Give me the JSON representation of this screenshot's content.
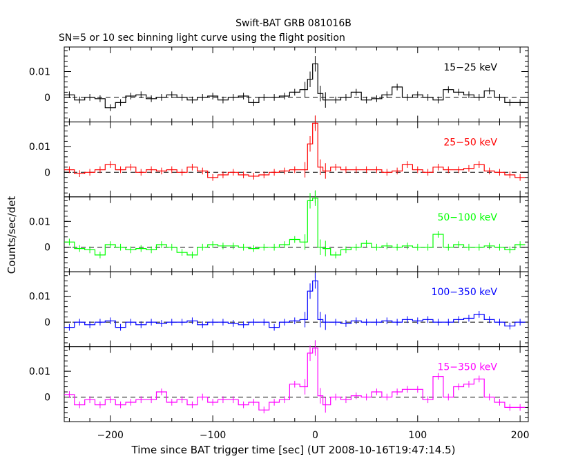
{
  "chart_data": {
    "type": "line",
    "title": "Swift-BAT GRB 081016B",
    "subtitle": "SN=5 or 10 sec binning light curve using the flight position",
    "xlabel": "Time since BAT trigger time [sec] (UT 2008-10-16T19:47:14.5)",
    "ylabel": "Counts/sec/det",
    "xlim": [
      -245,
      208
    ],
    "ylim": [
      -0.0095,
      0.0195
    ],
    "x_ticks": [
      -200,
      -100,
      0,
      100,
      200
    ],
    "x_tick_labels": [
      "−200",
      "−100",
      "0",
      "100",
      "200"
    ],
    "y_ticks": [
      0,
      0.01
    ],
    "y_tick_labels": [
      "0",
      "0.01"
    ],
    "zero_line": "dashed",
    "panels": [
      {
        "band": "15−25 keV",
        "color": "#000000",
        "x": [
          -240,
          -230,
          -220,
          -210,
          -200,
          -190,
          -180,
          -170,
          -160,
          -150,
          -140,
          -130,
          -120,
          -110,
          -100,
          -90,
          -80,
          -70,
          -60,
          -50,
          -40,
          -30,
          -20,
          -10,
          -5,
          0,
          5,
          10,
          20,
          30,
          40,
          50,
          60,
          70,
          80,
          90,
          100,
          110,
          120,
          130,
          140,
          150,
          160,
          170,
          180,
          190,
          200
        ],
        "y": [
          0.001,
          -0.001,
          0.0,
          -0.0005,
          -0.004,
          -0.002,
          0.0005,
          0.001,
          -0.0005,
          0.0,
          0.001,
          0.0,
          -0.001,
          0.0,
          0.0005,
          -0.001,
          0.0,
          0.0005,
          -0.002,
          0.0,
          0.0,
          0.0005,
          0.002,
          0.003,
          0.007,
          0.013,
          0.0015,
          -0.001,
          -0.001,
          0.0,
          0.002,
          -0.001,
          -0.0005,
          0.001,
          0.004,
          0.0,
          0.001,
          0.0,
          -0.001,
          0.003,
          0.002,
          0.001,
          0.0,
          0.0025,
          0.0,
          -0.002,
          -0.002
        ]
      },
      {
        "band": "25−50 keV",
        "color": "#ff0000",
        "x": [
          -240,
          -230,
          -220,
          -210,
          -200,
          -190,
          -180,
          -170,
          -160,
          -150,
          -140,
          -130,
          -120,
          -110,
          -100,
          -90,
          -80,
          -70,
          -60,
          -50,
          -40,
          -30,
          -20,
          -10,
          -5,
          0,
          5,
          10,
          20,
          30,
          40,
          50,
          60,
          70,
          80,
          90,
          100,
          110,
          120,
          130,
          140,
          150,
          160,
          170,
          180,
          190,
          200
        ],
        "y": [
          0.001,
          -0.0005,
          0.0,
          0.001,
          0.003,
          0.001,
          0.002,
          0.0,
          0.001,
          0.0005,
          0.001,
          0.0,
          0.002,
          0.0005,
          -0.002,
          -0.001,
          0.0,
          -0.001,
          -0.0015,
          -0.001,
          0.0,
          0.0005,
          0.001,
          0.001,
          0.011,
          0.019,
          0.002,
          0.0005,
          0.002,
          0.001,
          0.001,
          0.001,
          0.001,
          0.0,
          0.0005,
          0.003,
          0.001,
          0.0,
          0.002,
          0.001,
          0.001,
          0.0015,
          0.003,
          0.0005,
          0.0,
          -0.001,
          -0.002
        ]
      },
      {
        "band": "50−100 keV",
        "color": "#00ff00",
        "x": [
          -240,
          -230,
          -220,
          -210,
          -200,
          -190,
          -180,
          -170,
          -160,
          -150,
          -140,
          -130,
          -120,
          -110,
          -100,
          -90,
          -80,
          -70,
          -60,
          -50,
          -40,
          -30,
          -20,
          -10,
          -5,
          0,
          5,
          10,
          20,
          30,
          40,
          50,
          60,
          70,
          80,
          90,
          100,
          110,
          120,
          130,
          140,
          150,
          160,
          170,
          180,
          190,
          200
        ],
        "y": [
          0.002,
          -0.0005,
          -0.001,
          -0.003,
          0.001,
          0.0,
          -0.001,
          -0.0005,
          -0.001,
          0.001,
          0.0,
          -0.002,
          -0.003,
          0.0,
          0.001,
          0.0005,
          0.0005,
          0.0,
          -0.0005,
          0.0,
          0.0,
          0.001,
          0.003,
          0.002,
          0.018,
          0.019,
          0.0,
          -0.0005,
          -0.003,
          -0.001,
          0.0,
          0.0015,
          0.0,
          0.0005,
          0.0,
          0.0005,
          0.0,
          0.0,
          0.005,
          0.0,
          0.001,
          0.0,
          0.0,
          0.0005,
          0.0,
          -0.001,
          0.001
        ]
      },
      {
        "band": "100−350 keV",
        "color": "#0000ff",
        "x": [
          -240,
          -230,
          -220,
          -210,
          -200,
          -190,
          -180,
          -170,
          -160,
          -150,
          -140,
          -130,
          -120,
          -110,
          -100,
          -90,
          -80,
          -70,
          -60,
          -50,
          -40,
          -30,
          -20,
          -10,
          -5,
          0,
          5,
          10,
          20,
          30,
          40,
          50,
          60,
          70,
          80,
          90,
          100,
          110,
          120,
          130,
          140,
          150,
          160,
          170,
          180,
          190,
          200
        ],
        "y": [
          -0.002,
          0.0,
          -0.001,
          0.0,
          0.0005,
          -0.002,
          0.0,
          -0.001,
          0.0,
          -0.0005,
          0.0,
          0.0,
          0.0005,
          -0.001,
          0.0,
          0.0,
          -0.0005,
          -0.001,
          0.0,
          0.0,
          -0.002,
          0.0,
          0.0005,
          0.001,
          0.012,
          0.016,
          0.001,
          0.0,
          0.0,
          -0.0005,
          0.0005,
          0.0,
          0.0,
          0.0005,
          0.0,
          0.001,
          0.0005,
          0.001,
          0.0,
          0.0,
          0.001,
          0.0015,
          0.003,
          0.001,
          0.0,
          -0.0015,
          0.0
        ]
      },
      {
        "band": "15−350 keV",
        "color": "#ff00ff",
        "x": [
          -240,
          -230,
          -220,
          -210,
          -200,
          -190,
          -180,
          -170,
          -160,
          -150,
          -140,
          -130,
          -120,
          -110,
          -100,
          -90,
          -80,
          -70,
          -60,
          -50,
          -40,
          -30,
          -20,
          -10,
          -5,
          0,
          5,
          10,
          20,
          30,
          40,
          50,
          60,
          70,
          80,
          90,
          100,
          110,
          120,
          130,
          140,
          150,
          160,
          170,
          180,
          190,
          200
        ],
        "y": [
          0.001,
          -0.003,
          -0.001,
          -0.003,
          -0.001,
          -0.003,
          -0.002,
          -0.001,
          -0.001,
          0.002,
          -0.002,
          -0.001,
          -0.003,
          0.0,
          -0.002,
          -0.001,
          -0.001,
          -0.003,
          -0.002,
          -0.005,
          -0.002,
          -0.001,
          0.005,
          0.004,
          0.017,
          0.019,
          0.0005,
          -0.003,
          0.0,
          -0.001,
          0.0005,
          0.0,
          0.002,
          0.0,
          0.002,
          0.003,
          0.003,
          -0.001,
          0.008,
          0.0,
          0.004,
          0.005,
          0.007,
          0.0,
          -0.002,
          -0.004,
          -0.004
        ]
      }
    ]
  }
}
